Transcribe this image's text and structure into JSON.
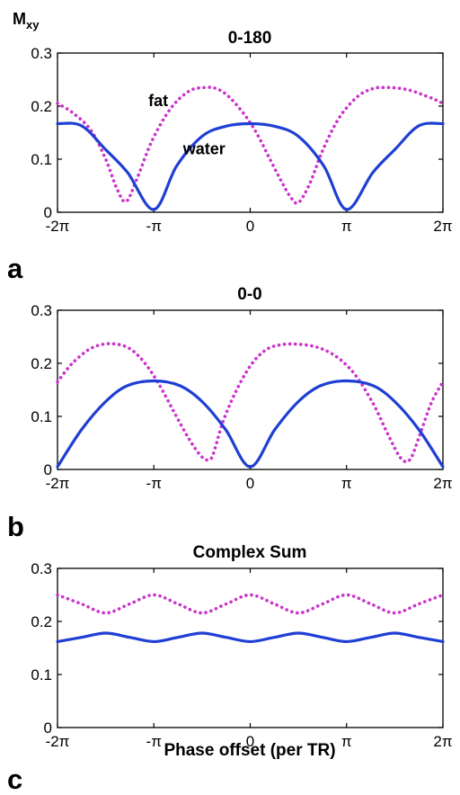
{
  "chart_data": [
    {
      "type": "line",
      "panel_letter": "a",
      "title": "0-180",
      "ylabel": "M",
      "ylabel_subscript": "xy",
      "xlabel": "",
      "xlim": [
        -6.2832,
        6.2832
      ],
      "ylim": [
        0,
        0.3
      ],
      "xticks": [
        -6.2832,
        -3.1416,
        0,
        3.1416,
        6.2832
      ],
      "xticklabels": [
        "-2π",
        "-π",
        "0",
        "π",
        "2π"
      ],
      "yticks": [
        0,
        0.1,
        0.2,
        0.3
      ],
      "yticklabels": [
        "0",
        "0.1",
        "0.2",
        "0.3"
      ],
      "grid": false,
      "legend": "none",
      "series": [
        {
          "name": "fat",
          "color": "#cc33cc",
          "style": "dotted",
          "x": [
            -6.2832,
            -5.8,
            -5.2,
            -4.712,
            -4.35,
            -4.05,
            -3.7,
            -3.2,
            -2.6,
            -2.0,
            -1.5,
            -1.1,
            -0.7,
            -0.2,
            0.2,
            0.6,
            1.0,
            1.3,
            1.57,
            1.95,
            2.35,
            2.9,
            3.5,
            4.0,
            4.4,
            4.8,
            5.2,
            5.6,
            6.0,
            6.2832
          ],
          "y": [
            0.205,
            0.188,
            0.155,
            0.1,
            0.045,
            0.02,
            0.062,
            0.135,
            0.195,
            0.228,
            0.235,
            0.233,
            0.218,
            0.185,
            0.15,
            0.105,
            0.06,
            0.03,
            0.018,
            0.055,
            0.115,
            0.178,
            0.218,
            0.233,
            0.235,
            0.234,
            0.23,
            0.222,
            0.213,
            0.205
          ]
        },
        {
          "name": "water",
          "color": "#1f3fd4",
          "style": "solid",
          "x": [
            -6.2832,
            -5.5,
            -4.712,
            -4.0,
            -3.1416,
            -2.4,
            -1.571,
            -0.8,
            0,
            0.8,
            1.571,
            2.4,
            3.1416,
            4.0,
            4.712,
            5.5,
            6.2832
          ],
          "y": [
            0.167,
            0.163,
            0.118,
            0.075,
            0.005,
            0.087,
            0.143,
            0.162,
            0.167,
            0.162,
            0.143,
            0.087,
            0.005,
            0.075,
            0.118,
            0.163,
            0.167
          ]
        }
      ],
      "annotations": [
        {
          "text": "fat",
          "x": -3.0,
          "y": 0.2
        },
        {
          "text": "water",
          "x": -1.5,
          "y": 0.109
        }
      ]
    },
    {
      "type": "line",
      "panel_letter": "b",
      "title": "0-0",
      "xlabel": "",
      "ylabel": "",
      "xlim": [
        -6.2832,
        6.2832
      ],
      "ylim": [
        0,
        0.3
      ],
      "xticks": [
        -6.2832,
        -3.1416,
        0,
        3.1416,
        6.2832
      ],
      "xticklabels": [
        "-2π",
        "-π",
        "0",
        "π",
        "2π"
      ],
      "yticks": [
        0,
        0.1,
        0.2,
        0.3
      ],
      "yticklabels": [
        "0",
        "0.1",
        "0.2",
        "0.3"
      ],
      "grid": false,
      "legend": "none",
      "series": [
        {
          "name": "",
          "color": "#cc33cc",
          "style": "dotted",
          "x": [
            -6.2832,
            -5.8,
            -5.2,
            -4.6,
            -4.0,
            -3.5,
            -3.0,
            -2.5,
            -2.0,
            -1.6,
            -1.35,
            -1.2,
            -0.9,
            -0.5,
            0,
            0.5,
            1.0,
            1.57,
            2.2,
            2.8,
            3.4,
            4.0,
            4.5,
            4.9,
            5.2,
            5.5,
            5.9,
            6.2832
          ],
          "y": [
            0.165,
            0.2,
            0.228,
            0.237,
            0.23,
            0.205,
            0.163,
            0.11,
            0.058,
            0.025,
            0.018,
            0.03,
            0.088,
            0.143,
            0.195,
            0.225,
            0.235,
            0.236,
            0.23,
            0.213,
            0.18,
            0.125,
            0.065,
            0.022,
            0.018,
            0.06,
            0.125,
            0.165
          ]
        },
        {
          "name": "",
          "color": "#1f3fd4",
          "style": "solid",
          "x": [
            -6.2832,
            -5.5,
            -4.712,
            -4.0,
            -3.1416,
            -2.3,
            -1.571,
            -0.8,
            0,
            0.8,
            1.571,
            2.3,
            3.1416,
            4.0,
            4.712,
            5.5,
            6.2832
          ],
          "y": [
            0.005,
            0.075,
            0.128,
            0.158,
            0.167,
            0.158,
            0.128,
            0.075,
            0.005,
            0.075,
            0.128,
            0.158,
            0.167,
            0.158,
            0.128,
            0.075,
            0.005
          ]
        }
      ],
      "annotations": []
    },
    {
      "type": "line",
      "panel_letter": "c",
      "title": "Complex Sum",
      "xlabel": "Phase offset (per TR)",
      "ylabel": "",
      "xlim": [
        -6.2832,
        6.2832
      ],
      "ylim": [
        0,
        0.3
      ],
      "xticks": [
        -6.2832,
        -3.1416,
        0,
        3.1416,
        6.2832
      ],
      "xticklabels": [
        "-2π",
        "-π",
        "0",
        "π",
        "2π"
      ],
      "yticks": [
        0,
        0.1,
        0.2,
        0.3
      ],
      "yticklabels": [
        "0",
        "0.1",
        "0.2",
        "0.3"
      ],
      "grid": false,
      "legend": "none",
      "series": [
        {
          "name": "",
          "color": "#cc33cc",
          "style": "dotted",
          "x": [
            -6.2832,
            -5.5,
            -4.712,
            -3.93,
            -3.1416,
            -2.36,
            -1.571,
            -0.785,
            0,
            0.785,
            1.571,
            2.36,
            3.1416,
            3.93,
            4.712,
            5.5,
            6.2832
          ],
          "y": [
            0.25,
            0.233,
            0.216,
            0.233,
            0.25,
            0.233,
            0.216,
            0.233,
            0.25,
            0.233,
            0.216,
            0.233,
            0.25,
            0.233,
            0.216,
            0.233,
            0.25
          ]
        },
        {
          "name": "",
          "color": "#1f3fd4",
          "style": "solid",
          "x": [
            -6.2832,
            -5.5,
            -4.712,
            -3.93,
            -3.1416,
            -2.36,
            -1.571,
            -0.785,
            0,
            0.785,
            1.571,
            2.36,
            3.1416,
            3.93,
            4.712,
            5.5,
            6.2832
          ],
          "y": [
            0.162,
            0.17,
            0.178,
            0.17,
            0.162,
            0.17,
            0.178,
            0.17,
            0.162,
            0.17,
            0.178,
            0.17,
            0.162,
            0.17,
            0.178,
            0.17,
            0.162
          ]
        }
      ],
      "annotations": []
    }
  ]
}
